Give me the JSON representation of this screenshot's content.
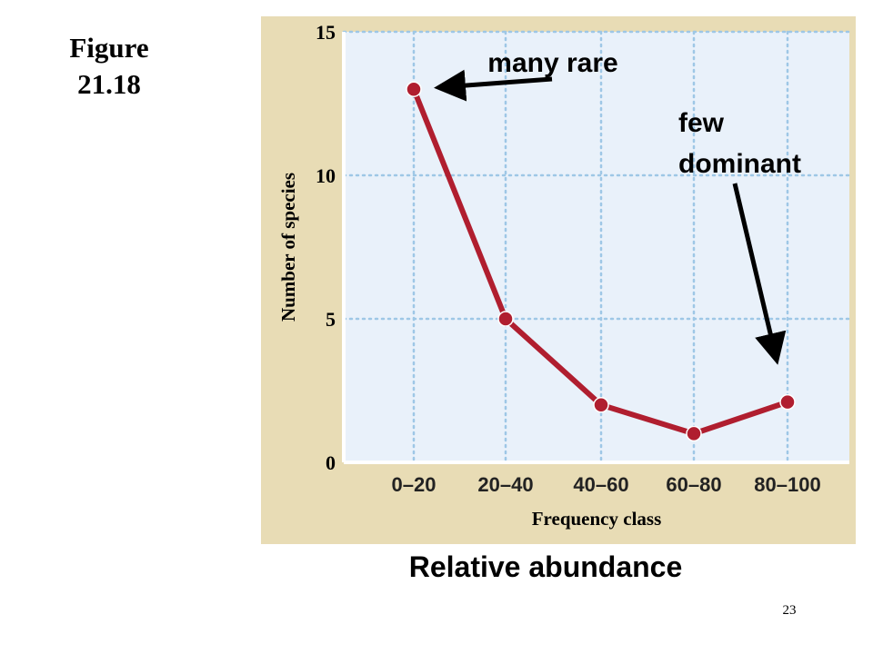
{
  "figure_label": {
    "line1": "Figure",
    "line2": "21.18"
  },
  "caption": "Relative abundance",
  "page_number": "23",
  "annotations": {
    "many_rare": "many rare",
    "few_dominant_line1": "few",
    "few_dominant_line2": "dominant"
  },
  "colors": {
    "panel_background": "#e8dcb5",
    "plot_background": "#e9f1fa",
    "line": "#b01e2f",
    "grid": "#9ec7e6"
  },
  "chart_data": {
    "type": "line",
    "title": "",
    "xlabel": "Frequency class",
    "ylabel": "Number of species",
    "categories": [
      "0–20",
      "20–40",
      "40–60",
      "60–80",
      "80–100"
    ],
    "values": [
      13,
      5,
      2,
      1,
      2.1
    ],
    "ylim": [
      0,
      15
    ],
    "yticks": [
      "0",
      "5",
      "10",
      "15"
    ],
    "grid": true,
    "legend": "none"
  }
}
